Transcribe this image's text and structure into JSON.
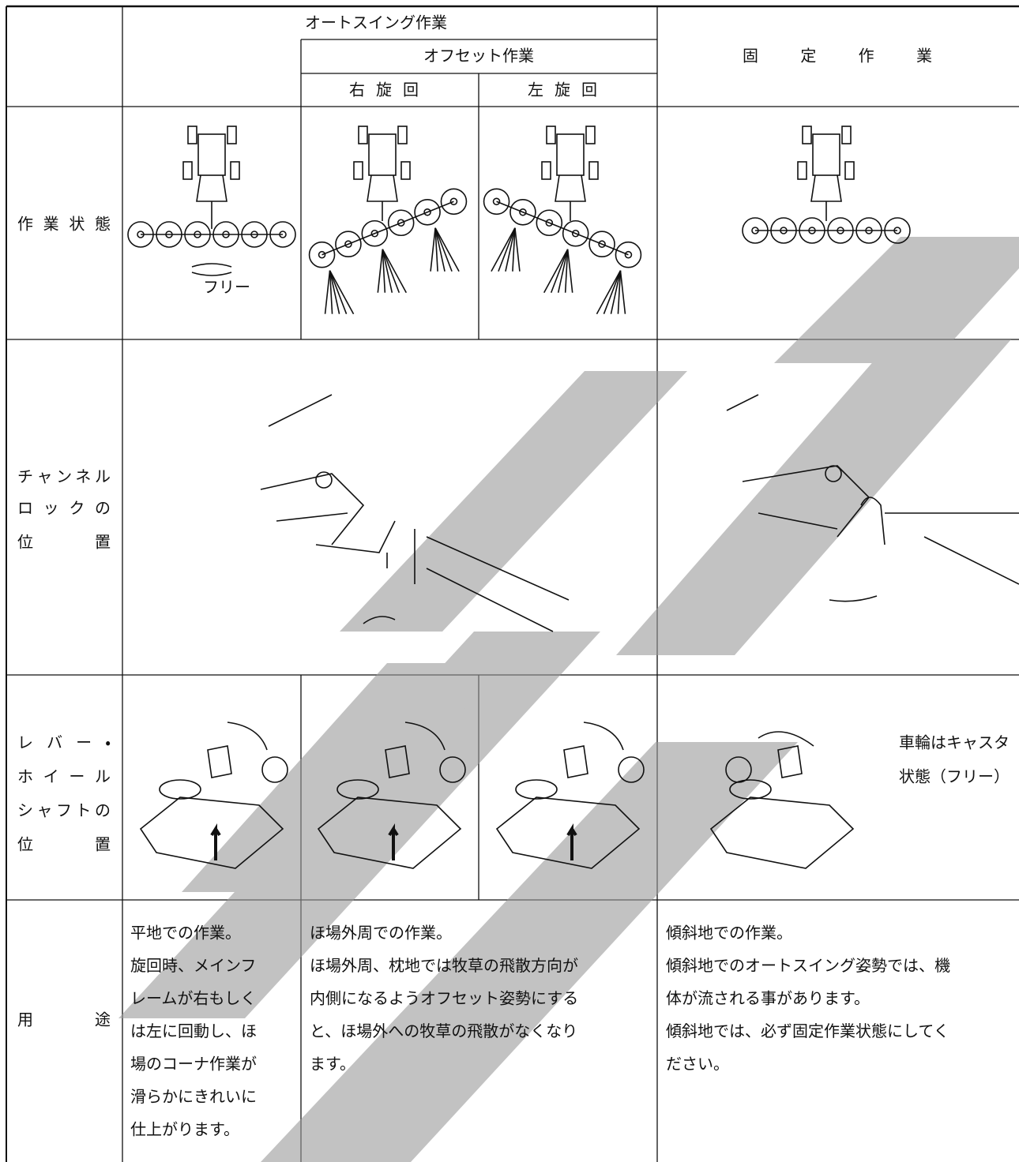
{
  "header": {
    "auto_swing": "オートスイング作業",
    "offset": "オフセット作業",
    "right_turn": "右旋回",
    "left_turn": "左旋回",
    "fixed": "固定作業"
  },
  "rows": {
    "work_state": [
      "作業状態"
    ],
    "channel_lock": [
      "チャンネル",
      "ロックの",
      "位置"
    ],
    "lever_shaft": [
      "レバー・",
      "ホイール",
      "シャフトの",
      "位置"
    ],
    "usage": [
      "用途"
    ]
  },
  "illustrations": {
    "free": "フリー",
    "caster_note": [
      "車輪はキャスタ",
      "状態（フリー）"
    ]
  },
  "usage": {
    "auto_swing": [
      "平地での作業。",
      "旋回時、メインフ",
      "レームが右もしく",
      "は左に回動し、ほ",
      "場のコーナ作業が",
      "滑らかにきれいに",
      "仕上がります。"
    ],
    "offset": [
      "ほ場外周での作業。",
      "ほ場外周、枕地では牧草の飛散方向が",
      "内側になるようオフセット姿勢にする",
      "と、ほ場外への牧草の飛散がなくなり",
      "ます。"
    ],
    "fixed": [
      "傾斜地での作業。",
      "傾斜地でのオートスイング姿勢では、機",
      "体が流される事があります。",
      "傾斜地では、必ず固定作業状態にしてく",
      "ださい。"
    ]
  }
}
